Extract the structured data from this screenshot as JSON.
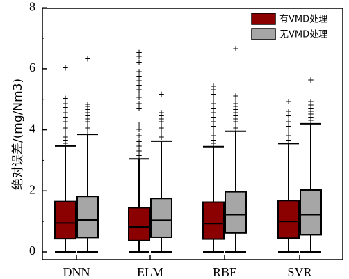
{
  "chart_data": {
    "type": "box",
    "ylabel": "绝对误差/(mg/Nm3)",
    "ylim": [
      0,
      8
    ],
    "yticks": [
      0,
      2,
      4,
      6,
      8
    ],
    "categories": [
      "DNN",
      "ELM",
      "RBF",
      "SVR"
    ],
    "legend": {
      "placement": "top-right"
    },
    "series": [
      {
        "name": "有VMD处理",
        "color": "#8b0000",
        "boxes": [
          {
            "min": 0.0,
            "q1": 0.43,
            "median": 0.95,
            "q3": 1.65,
            "max": 3.47,
            "outliers": [
              3.55,
              3.65,
              3.75,
              3.85,
              3.95,
              4.05,
              4.15,
              4.25,
              4.4,
              4.55,
              4.72,
              4.85,
              5.02,
              6.02
            ]
          },
          {
            "min": 0.0,
            "q1": 0.37,
            "median": 0.82,
            "q3": 1.45,
            "max": 3.05,
            "outliers": [
              3.15,
              3.3,
              3.45,
              3.6,
              3.8,
              4.0,
              4.15,
              4.7,
              4.85,
              5.05,
              5.2,
              5.3,
              5.45,
              5.6,
              5.75,
              5.9,
              6.2,
              6.4,
              6.52
            ]
          },
          {
            "min": 0.0,
            "q1": 0.42,
            "median": 0.93,
            "q3": 1.63,
            "max": 3.45,
            "outliers": [
              3.55,
              3.65,
              3.8,
              3.95,
              4.1,
              4.25,
              4.4,
              4.55,
              4.7,
              4.85,
              5.0,
              5.15,
              5.3,
              5.42
            ]
          },
          {
            "min": 0.0,
            "q1": 0.45,
            "median": 1.0,
            "q3": 1.68,
            "max": 3.55,
            "outliers": [
              3.65,
              3.8,
              3.95,
              4.1,
              4.25,
              4.45,
              4.6,
              4.92
            ]
          }
        ]
      },
      {
        "name": "无VMD处理",
        "color": "#a6a6a6",
        "boxes": [
          {
            "min": 0.0,
            "q1": 0.47,
            "median": 1.05,
            "q3": 1.82,
            "max": 3.85,
            "outliers": [
              3.95,
              4.05,
              4.15,
              4.25,
              4.35,
              4.45,
              4.55,
              4.65,
              4.75,
              4.82,
              6.32
            ]
          },
          {
            "min": 0.0,
            "q1": 0.48,
            "median": 1.04,
            "q3": 1.75,
            "max": 3.63,
            "outliers": [
              3.75,
              3.85,
              3.95,
              4.05,
              4.15,
              4.25,
              4.35,
              4.45,
              4.55,
              5.15
            ]
          },
          {
            "min": 0.0,
            "q1": 0.62,
            "median": 1.22,
            "q3": 1.97,
            "max": 3.95,
            "outliers": [
              4.05,
              4.15,
              4.25,
              4.35,
              4.45,
              4.55,
              4.65,
              4.75,
              4.85,
              5.0,
              5.1,
              6.65
            ]
          },
          {
            "min": 0.0,
            "q1": 0.56,
            "median": 1.22,
            "q3": 2.03,
            "max": 4.2,
            "outliers": [
              4.3,
              4.4,
              4.5,
              4.6,
              4.7,
              4.8,
              4.92,
              5.62
            ]
          }
        ]
      }
    ]
  }
}
